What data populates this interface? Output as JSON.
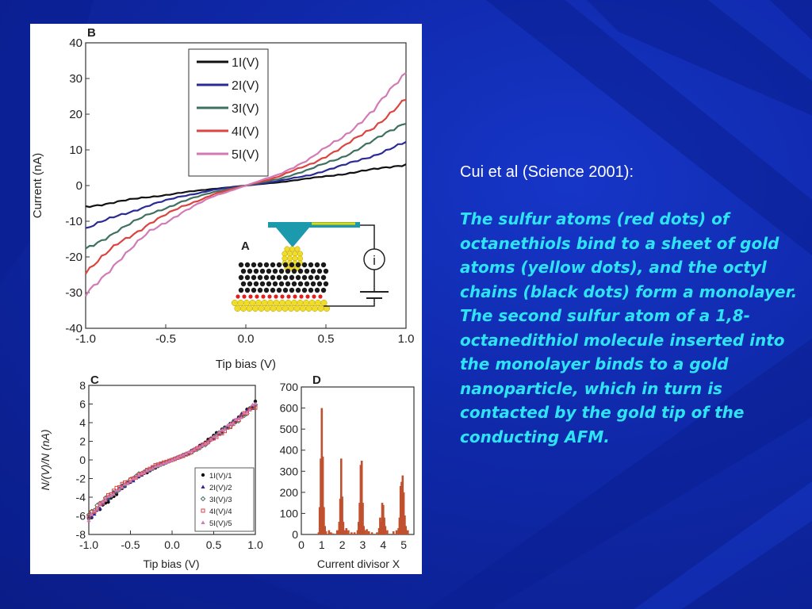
{
  "slide": {
    "citation": "Cui et al (Science 2001):",
    "description": "The sulfur atoms (red dots) of octanethiols bind to a sheet of gold atoms (yellow dots), and the octyl chains (black dots) form a monolayer. The second sulfur atom of a 1,8-octanedithiol molecule inserted into the monolayer binds to a gold nanoparticle, which in turn is contacted by the gold tip of the conducting AFM."
  },
  "colors": {
    "background": "#0f28a8",
    "caption_text": "#2ee4f4",
    "series": [
      "#111111",
      "#2a2a96",
      "#3e7060",
      "#dc4440",
      "#d27ab4"
    ]
  },
  "chart_data": [
    {
      "panel": "B",
      "type": "line",
      "xlabel": "Tip bias (V)",
      "ylabel": "Current (nA)",
      "xlim": [
        -1.0,
        1.0
      ],
      "ylim": [
        -40,
        40
      ],
      "x_ticks": [
        "-1.0",
        "-0.5",
        "0.0",
        "0.5",
        "1.0"
      ],
      "y_ticks": [
        "40",
        "30",
        "20",
        "10",
        "0",
        "-10",
        "-20",
        "-30",
        "-40"
      ],
      "legend_position": "top-center",
      "series": [
        {
          "name": "1I(V)",
          "x": [
            -1.0,
            -0.8,
            -0.6,
            -0.4,
            -0.2,
            0.0,
            0.2,
            0.4,
            0.6,
            0.8,
            1.0
          ],
          "y": [
            -6,
            -4.5,
            -3.2,
            -2,
            -0.9,
            0,
            0.9,
            2,
            3.2,
            4.5,
            6
          ]
        },
        {
          "name": "2I(V)",
          "x": [
            -1.0,
            -0.8,
            -0.6,
            -0.4,
            -0.2,
            0.0,
            0.2,
            0.4,
            0.6,
            0.8,
            1.0
          ],
          "y": [
            -12,
            -8.5,
            -5.5,
            -3,
            -1.2,
            0,
            1.2,
            3,
            5.5,
            8.5,
            12
          ]
        },
        {
          "name": "3I(V)",
          "x": [
            -1.0,
            -0.8,
            -0.6,
            -0.4,
            -0.2,
            0.0,
            0.2,
            0.4,
            0.6,
            0.8,
            1.0
          ],
          "y": [
            -18,
            -12.5,
            -8,
            -4.5,
            -1.8,
            0,
            1.8,
            4.5,
            8,
            12.5,
            18
          ]
        },
        {
          "name": "4I(V)",
          "x": [
            -1.0,
            -0.8,
            -0.6,
            -0.4,
            -0.2,
            0.0,
            0.2,
            0.4,
            0.6,
            0.8,
            1.0
          ],
          "y": [
            -24,
            -16.5,
            -10.5,
            -6,
            -2.4,
            0,
            2.4,
            6,
            10.5,
            16.5,
            24
          ]
        },
        {
          "name": "5I(V)",
          "x": [
            -1.0,
            -0.8,
            -0.6,
            -0.4,
            -0.2,
            0.0,
            0.2,
            0.4,
            0.6,
            0.8,
            1.0
          ],
          "y": [
            -31,
            -21,
            -13,
            -7.5,
            -3,
            0,
            3,
            7.5,
            13.5,
            21,
            32
          ]
        }
      ],
      "inset_label": "A",
      "inset_meter": "i"
    },
    {
      "panel": "C",
      "type": "scatter",
      "xlabel": "Tip bias (V)",
      "ylabel": "N/(V)/N (nA)",
      "xlim": [
        -1.0,
        1.0
      ],
      "ylim": [
        -8,
        8
      ],
      "x_ticks": [
        "-1.0",
        "-0.5",
        "0.0",
        "0.5",
        "1.0"
      ],
      "y_ticks": [
        "8",
        "6",
        "4",
        "2",
        "0",
        "-2",
        "-4",
        "-6",
        "-8"
      ],
      "legend_position": "bottom-right",
      "series": [
        {
          "name": "1I(V)/1",
          "marker": "circle",
          "x": [
            -1.0,
            -0.8,
            -0.6,
            -0.4,
            -0.2,
            0.0,
            0.2,
            0.4,
            0.6,
            0.8,
            1.0
          ],
          "y": [
            -6.5,
            -4.6,
            -3.0,
            -1.8,
            -0.8,
            0,
            0.8,
            1.9,
            3.2,
            4.6,
            6
          ]
        },
        {
          "name": "2I(V)/2",
          "marker": "triangle",
          "x": [
            -1.0,
            -0.8,
            -0.6,
            -0.4,
            -0.2,
            0.0,
            0.2,
            0.4,
            0.6,
            0.8,
            1.0
          ],
          "y": [
            -6.2,
            -4.4,
            -2.9,
            -1.7,
            -0.7,
            0,
            0.8,
            1.8,
            3.1,
            4.5,
            6
          ]
        },
        {
          "name": "3I(V)/3",
          "marker": "diamond",
          "x": [
            -1.0,
            -0.8,
            -0.6,
            -0.4,
            -0.2,
            0.0,
            0.2,
            0.4,
            0.6,
            0.8,
            1.0
          ],
          "y": [
            -6.0,
            -4.2,
            -2.8,
            -1.6,
            -0.7,
            0,
            0.7,
            1.7,
            3.0,
            4.4,
            5.9
          ]
        },
        {
          "name": "4I(V)/4",
          "marker": "square",
          "x": [
            -1.0,
            -0.8,
            -0.6,
            -0.4,
            -0.2,
            0.0,
            0.2,
            0.4,
            0.6,
            0.8,
            1.0
          ],
          "y": [
            -6.0,
            -4.1,
            -2.7,
            -1.6,
            -0.6,
            0,
            0.7,
            1.7,
            3.0,
            4.3,
            5.8
          ]
        },
        {
          "name": "5I(V)/5",
          "marker": "triangle",
          "x": [
            -1.0,
            -0.8,
            -0.6,
            -0.4,
            -0.2,
            0.0,
            0.2,
            0.4,
            0.6,
            0.8,
            1.0
          ],
          "y": [
            -6.3,
            -4.3,
            -2.8,
            -1.7,
            -0.7,
            0,
            0.8,
            1.8,
            3.1,
            4.5,
            6.1
          ]
        }
      ]
    },
    {
      "panel": "D",
      "type": "bar",
      "xlabel": "Current divisor X",
      "ylabel": "",
      "xlim": [
        0,
        5.5
      ],
      "ylim": [
        0,
        700
      ],
      "x_ticks": [
        "0",
        "1",
        "2",
        "3",
        "4",
        "5"
      ],
      "y_ticks": [
        "700",
        "600",
        "500",
        "400",
        "300",
        "200",
        "100",
        "0"
      ],
      "bars": {
        "x": [
          0.85,
          0.9,
          0.95,
          1.0,
          1.05,
          1.1,
          1.15,
          1.2,
          1.35,
          1.45,
          1.55,
          1.75,
          1.85,
          1.9,
          1.95,
          2.0,
          2.05,
          2.1,
          2.2,
          2.3,
          2.45,
          2.6,
          2.75,
          2.8,
          2.85,
          2.9,
          2.95,
          3.0,
          3.05,
          3.1,
          3.2,
          3.3,
          3.45,
          3.7,
          3.8,
          3.85,
          3.9,
          3.95,
          4.0,
          4.05,
          4.1,
          4.2,
          4.5,
          4.65,
          4.75,
          4.8,
          4.85,
          4.9,
          4.95,
          5.0,
          5.05,
          5.1,
          5.2
        ],
        "y": [
          10,
          130,
          360,
          600,
          370,
          130,
          40,
          15,
          20,
          10,
          5,
          20,
          60,
          170,
          360,
          180,
          60,
          20,
          30,
          20,
          10,
          10,
          20,
          60,
          150,
          330,
          350,
          150,
          40,
          20,
          25,
          15,
          10,
          10,
          30,
          80,
          60,
          150,
          140,
          80,
          40,
          20,
          15,
          20,
          30,
          80,
          230,
          250,
          280,
          200,
          90,
          40,
          20
        ]
      }
    }
  ]
}
